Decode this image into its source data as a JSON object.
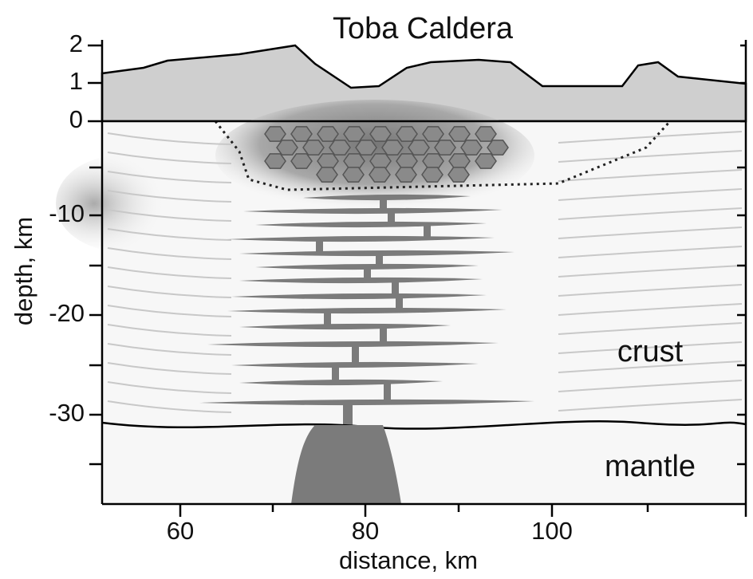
{
  "title": "Toba Caldera",
  "topography_axis": {
    "ticks": [
      "2",
      "1",
      "0"
    ]
  },
  "depth_axis": {
    "label": "depth, km",
    "ticks": [
      "-10",
      "-20",
      "-30"
    ]
  },
  "distance_axis": {
    "label": "distance, km",
    "ticks": [
      "60",
      "80",
      "100"
    ]
  },
  "layers": [
    "crust",
    "mantle"
  ]
}
